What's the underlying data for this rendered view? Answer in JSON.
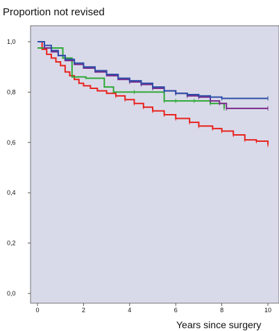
{
  "chart_data": {
    "type": "line",
    "step": true,
    "title": "",
    "ylabel": "Proportion not revised",
    "xlabel": "Years since surgery",
    "xlim": [
      -0.3,
      10.5
    ],
    "ylim": [
      0.0,
      1.0
    ],
    "x_ticks": [
      0,
      2,
      4,
      6,
      8,
      10
    ],
    "x_tick_labels": [
      "0",
      "2",
      "4",
      "6",
      "8",
      "10"
    ],
    "y_ticks": [
      0.0,
      0.2,
      0.4,
      0.6,
      0.8,
      1.0
    ],
    "y_tick_labels": [
      "0,0",
      "0,2",
      "0,4",
      "0,6",
      "0,8",
      "1,0"
    ],
    "grid": false,
    "plot_background": "#d9dae9",
    "series": [
      {
        "color": "#e8221c",
        "x": [
          0,
          0.2,
          0.4,
          0.6,
          0.8,
          1.0,
          1.2,
          1.4,
          1.6,
          1.8,
          2.0,
          2.3,
          2.6,
          3.0,
          3.4,
          3.8,
          4.2,
          4.6,
          5.0,
          5.5,
          6.0,
          6.6,
          7.0,
          7.6,
          8.0,
          8.5,
          9.0,
          9.5,
          10.0
        ],
        "y": [
          1.0,
          0.97,
          0.95,
          0.935,
          0.92,
          0.905,
          0.88,
          0.865,
          0.85,
          0.835,
          0.825,
          0.815,
          0.805,
          0.795,
          0.785,
          0.77,
          0.755,
          0.74,
          0.725,
          0.71,
          0.695,
          0.68,
          0.665,
          0.655,
          0.645,
          0.63,
          0.61,
          0.605,
          0.59
        ]
      },
      {
        "color": "#2ea836",
        "x": [
          0,
          1.1,
          1.5,
          2.1,
          2.9,
          3.3,
          4.2,
          5.5,
          6.0,
          6.8,
          7.5,
          8.1
        ],
        "y": [
          0.975,
          0.935,
          0.86,
          0.855,
          0.82,
          0.8,
          0.8,
          0.765,
          0.765,
          0.765,
          0.755,
          0.735
        ]
      },
      {
        "color": "#7a2a8c",
        "x": [
          0,
          0.3,
          0.6,
          0.9,
          1.2,
          1.6,
          2.0,
          2.5,
          3.0,
          3.5,
          4.0,
          4.5,
          5.0,
          5.5,
          6.0,
          6.5,
          7.0,
          7.5,
          7.9,
          8.2,
          10.0
        ],
        "y": [
          1.0,
          0.975,
          0.96,
          0.945,
          0.925,
          0.91,
          0.895,
          0.88,
          0.865,
          0.85,
          0.84,
          0.83,
          0.815,
          0.805,
          0.795,
          0.785,
          0.78,
          0.765,
          0.755,
          0.735,
          0.735
        ]
      },
      {
        "color": "#2d4fa8",
        "x": [
          0,
          0.3,
          0.6,
          0.9,
          1.2,
          1.6,
          2.0,
          2.5,
          3.0,
          3.5,
          4.0,
          4.5,
          5.0,
          5.5,
          6.0,
          6.5,
          7.0,
          7.5,
          8.0,
          10.0
        ],
        "y": [
          1.0,
          0.985,
          0.965,
          0.945,
          0.93,
          0.915,
          0.9,
          0.885,
          0.87,
          0.855,
          0.845,
          0.835,
          0.82,
          0.805,
          0.795,
          0.79,
          0.785,
          0.78,
          0.775,
          0.775
        ]
      }
    ]
  }
}
